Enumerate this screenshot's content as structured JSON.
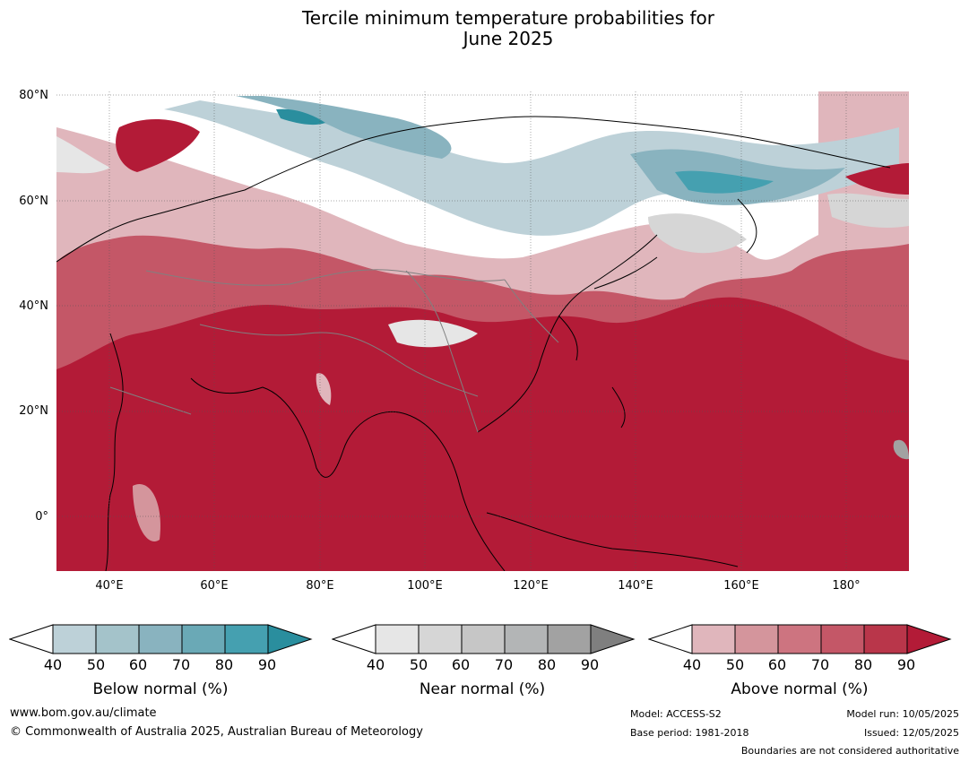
{
  "title_line1": "Tercile minimum temperature probabilities for",
  "title_line2": "June 2025",
  "map": {
    "lat_labels": [
      "80°N",
      "60°N",
      "40°N",
      "20°N",
      "0°"
    ],
    "lon_labels": [
      "40°E",
      "60°E",
      "80°E",
      "100°E",
      "120°E",
      "140°E",
      "160°E",
      "180°"
    ]
  },
  "colorbars": [
    {
      "title": "Below normal (%)",
      "ticks": [
        "40",
        "50",
        "60",
        "70",
        "80",
        "90"
      ],
      "colors": [
        "#ffffff",
        "#bdd1d8",
        "#a4c3ca",
        "#89b3bf",
        "#6aa9b6",
        "#45a0b0",
        "#2a8e9e"
      ]
    },
    {
      "title": "Near normal (%)",
      "ticks": [
        "40",
        "50",
        "60",
        "70",
        "80",
        "90"
      ],
      "colors": [
        "#ffffff",
        "#e6e6e6",
        "#d6d6d6",
        "#c6c6c6",
        "#b3b5b6",
        "#a2a2a2",
        "#7f7f7f"
      ]
    },
    {
      "title": "Above normal (%)",
      "ticks": [
        "40",
        "50",
        "60",
        "70",
        "80",
        "90"
      ],
      "colors": [
        "#ffffff",
        "#e0b6bc",
        "#d4959c",
        "#cd7480",
        "#c45767",
        "#b9364a",
        "#b31b37"
      ]
    }
  ],
  "footer": {
    "website": "www.bom.gov.au/climate",
    "copyright": "© Commonwealth of Australia 2025, Australian Bureau of Meteorology",
    "model": "Model: ACCESS-S2",
    "base_period": "Base period: 1981-2018",
    "model_run": "Model run: 10/05/2025",
    "issued": "Issued: 12/05/2025",
    "boundaries": "Boundaries are not considered authoritative"
  }
}
